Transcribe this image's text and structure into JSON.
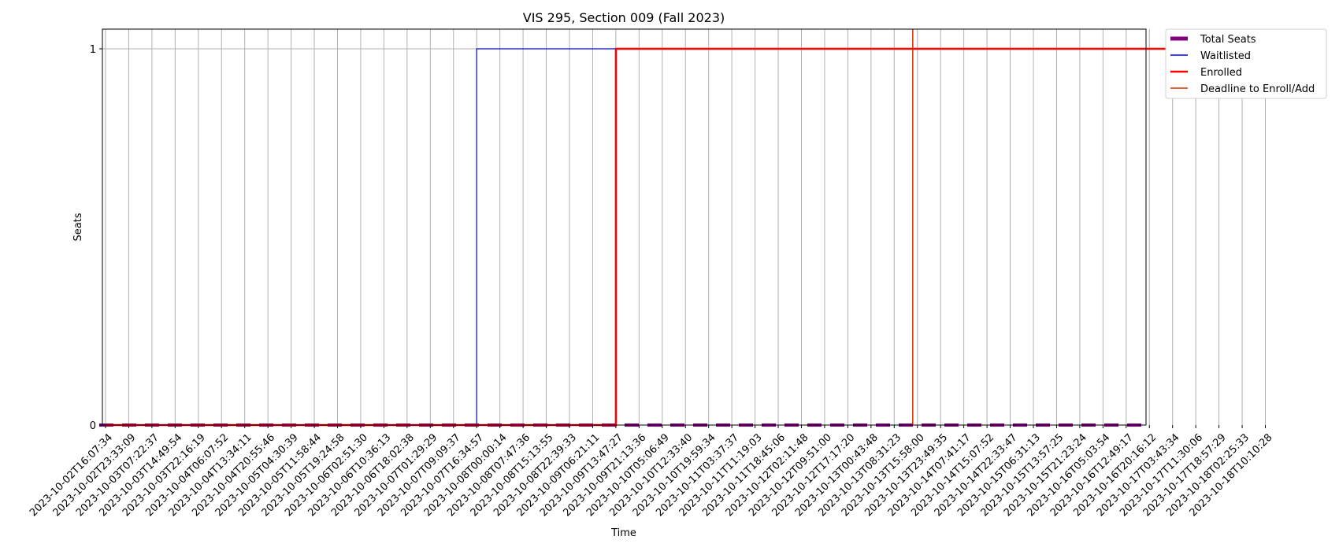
{
  "chart_data": {
    "type": "line",
    "title": "VIS 295, Section 009 (Fall 2023)",
    "xlabel": "Time",
    "ylabel": "Seats",
    "ylim": [
      0,
      1
    ],
    "yticks": [
      "0",
      "1"
    ],
    "grid": true,
    "legend_position": "outside top-right",
    "x": [
      "2023-10-02T16:07:34",
      "2023-10-02T23:33:09",
      "2023-10-03T07:22:37",
      "2023-10-03T14:49:54",
      "2023-10-03T22:16:19",
      "2023-10-04T06:07:52",
      "2023-10-04T13:34:11",
      "2023-10-04T20:55:46",
      "2023-10-05T04:30:39",
      "2023-10-05T11:58:44",
      "2023-10-05T19:24:58",
      "2023-10-06T02:51:30",
      "2023-10-06T10:36:13",
      "2023-10-06T18:02:38",
      "2023-10-07T01:29:29",
      "2023-10-07T09:09:37",
      "2023-10-07T16:34:57",
      "2023-10-08T00:00:14",
      "2023-10-08T07:47:36",
      "2023-10-08T15:13:55",
      "2023-10-08T22:39:33",
      "2023-10-09T06:21:11",
      "2023-10-09T13:47:27",
      "2023-10-09T21:13:36",
      "2023-10-10T05:06:49",
      "2023-10-10T12:33:40",
      "2023-10-10T19:59:34",
      "2023-10-11T03:37:37",
      "2023-10-11T11:19:03",
      "2023-10-11T18:45:06",
      "2023-10-12T02:11:48",
      "2023-10-12T09:51:00",
      "2023-10-12T17:17:20",
      "2023-10-13T00:43:48",
      "2023-10-13T08:31:23",
      "2023-10-13T15:58:00",
      "2023-10-13T23:49:35",
      "2023-10-14T07:41:17",
      "2023-10-14T15:07:52",
      "2023-10-14T22:33:47",
      "2023-10-15T06:31:13",
      "2023-10-15T13:57:25",
      "2023-10-15T21:23:24",
      "2023-10-16T05:03:54",
      "2023-10-16T12:49:17",
      "2023-10-16T20:16:12",
      "2023-10-17T03:43:34",
      "2023-10-17T11:30:06",
      "2023-10-17T18:57:29",
      "2023-10-18T02:25:33",
      "2023-10-18T10:10:28"
    ],
    "series": [
      {
        "name": "Total Seats",
        "color": "#800080",
        "style": "dashed-thick",
        "values": [
          0,
          0,
          0,
          0,
          0,
          0,
          0,
          0,
          0,
          0,
          0,
          0,
          0,
          0,
          0,
          0,
          0,
          0,
          0,
          0,
          0,
          0,
          0,
          0,
          0,
          0,
          0,
          0,
          0,
          0,
          0,
          0,
          0,
          0,
          0,
          0,
          0,
          0,
          0,
          0,
          0,
          0,
          0,
          0,
          0,
          0,
          0,
          0,
          0,
          0,
          0
        ]
      },
      {
        "name": "Waitlisted",
        "color": "#0000ff",
        "style": "step-thin",
        "values": [
          0,
          0,
          0,
          0,
          0,
          0,
          0,
          0,
          0,
          0,
          0,
          0,
          0,
          0,
          0,
          0,
          1,
          1,
          1,
          1,
          1,
          1,
          1,
          1,
          1,
          1,
          1,
          1,
          1,
          1,
          1,
          1,
          1,
          1,
          1,
          1,
          1,
          1,
          1,
          1,
          1,
          1,
          1,
          1,
          1,
          1,
          1,
          1,
          1,
          1,
          1
        ]
      },
      {
        "name": "Enrolled",
        "color": "#ff0000",
        "style": "step-thick",
        "values": [
          0,
          0,
          0,
          0,
          0,
          0,
          0,
          0,
          0,
          0,
          0,
          0,
          0,
          0,
          0,
          0,
          0,
          0,
          0,
          0,
          0,
          0,
          1,
          1,
          1,
          1,
          1,
          1,
          1,
          1,
          1,
          1,
          1,
          1,
          1,
          1,
          1,
          1,
          1,
          1,
          1,
          1,
          1,
          1,
          1,
          1,
          1,
          1,
          1,
          1,
          1
        ]
      }
    ],
    "deadline": {
      "name": "Deadline to Enroll/Add",
      "color": "#d62c00",
      "x_index": 34.8
    }
  }
}
